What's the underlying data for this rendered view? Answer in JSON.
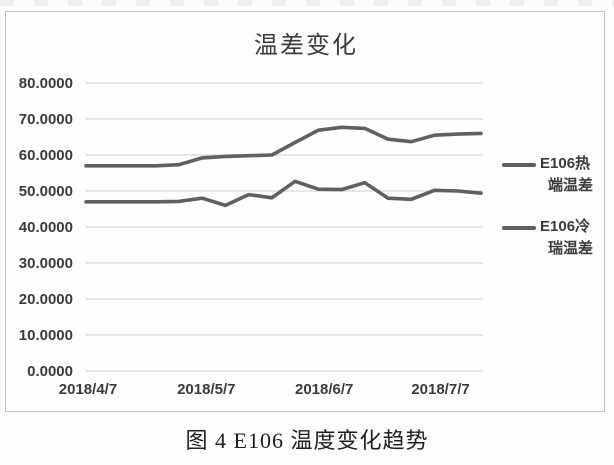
{
  "figure": {
    "title": "温差变化",
    "caption": "图 4  E106 温度变化趋势"
  },
  "legend": {
    "items": [
      {
        "label_line1": "E106热",
        "label_line2": "端温差",
        "full_name": "E106热端温差"
      },
      {
        "label_line1": "E106冷",
        "label_line2": "瑞温差",
        "full_name": "E106冷瑞温差"
      }
    ]
  },
  "chart_data": {
    "type": "line",
    "title": "温差变化",
    "xlabel": "",
    "ylabel": "",
    "ylim": [
      0,
      80
    ],
    "grid": true,
    "legend_position": "right",
    "y_tick_labels": [
      "80.0000",
      "70.0000",
      "60.0000",
      "50.0000",
      "40.0000",
      "30.0000",
      "20.0000",
      "10.0000",
      "0.0000"
    ],
    "x_tick_labels": [
      "2018/4/7",
      "2018/5/7",
      "2018/6/7",
      "2018/7/7"
    ],
    "series": [
      {
        "name": "E106热端温差",
        "values": [
          57.0,
          57.0,
          57.0,
          57.0,
          57.3,
          59.2,
          59.6,
          59.8,
          60.0,
          63.5,
          66.9,
          67.7,
          67.4,
          64.4,
          63.7,
          65.5,
          65.8,
          66.0
        ]
      },
      {
        "name": "E106冷瑞温差",
        "values": [
          47.0,
          47.0,
          47.0,
          47.0,
          47.1,
          48.0,
          46.0,
          49.0,
          48.1,
          52.7,
          50.5,
          50.4,
          52.3,
          48.0,
          47.7,
          50.2,
          50.0,
          49.4
        ]
      }
    ],
    "colors": {
      "line": "#606060",
      "grid": "#d8d8d8",
      "axis_text": "#3b3b3b"
    }
  }
}
